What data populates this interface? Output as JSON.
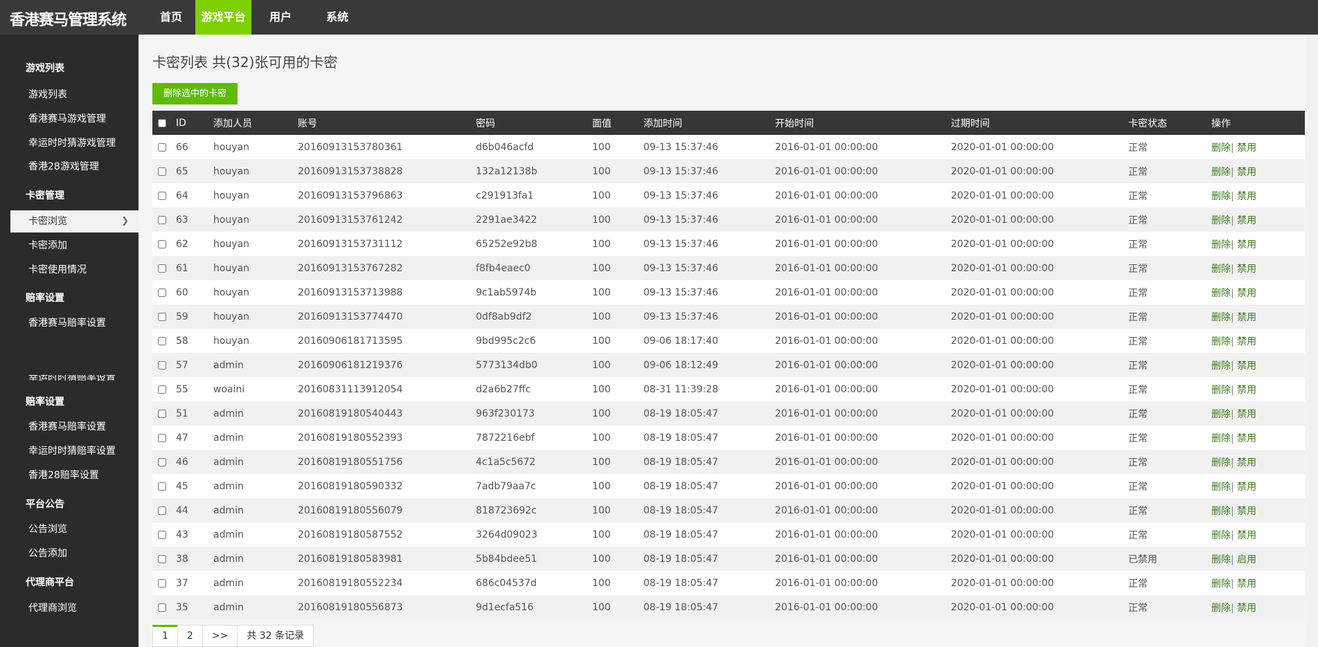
{
  "app": {
    "title": "香港赛马管理系统"
  },
  "nav": [
    {
      "label": "首页"
    },
    {
      "label": "游戏平台",
      "active": true
    },
    {
      "label": "用户"
    },
    {
      "label": "系统"
    }
  ],
  "sidebar": {
    "sections": [
      {
        "title": "游戏列表",
        "items": [
          "游戏列表",
          "香港赛马游戏管理",
          "幸运时时猜游戏管理",
          "香港28游戏管理"
        ]
      },
      {
        "title": "卡密管理",
        "items": [
          "卡密浏览",
          "卡密添加",
          "卡密使用情况"
        ]
      },
      {
        "title": "赔率设置",
        "items": [
          "香港赛马赔率设置",
          "幸运时时猜赔率设置"
        ]
      },
      {
        "title": "赔率设置",
        "items": [
          "香港赛马赔率设置",
          "幸运时时猜赔率设置",
          "香港28赔率设置"
        ]
      },
      {
        "title": "平台公告",
        "items": [
          "公告浏览",
          "公告添加"
        ]
      },
      {
        "title": "代理商平台",
        "items": [
          "代理商浏览"
        ]
      }
    ],
    "active_item": "卡密浏览"
  },
  "page": {
    "title": "卡密列表 共(32)张可用的卡密",
    "delete_selected": "删除选中的卡密"
  },
  "table": {
    "columns": [
      "ID",
      "添加人员",
      "账号",
      "密码",
      "面值",
      "添加时间",
      "开始时间",
      "过期时间",
      "卡密状态",
      "操作"
    ],
    "action_delete": "删除",
    "rows": [
      [
        "66",
        "houyan",
        "20160913153780361",
        "d6b046acfd",
        "100",
        "09-13 15:37:46",
        "2016-01-01 00:00:00",
        "2020-01-01 00:00:00",
        "正常",
        "禁用"
      ],
      [
        "65",
        "houyan",
        "20160913153738828",
        "132a12138b",
        "100",
        "09-13 15:37:46",
        "2016-01-01 00:00:00",
        "2020-01-01 00:00:00",
        "正常",
        "禁用"
      ],
      [
        "64",
        "houyan",
        "20160913153796863",
        "c291913fa1",
        "100",
        "09-13 15:37:46",
        "2016-01-01 00:00:00",
        "2020-01-01 00:00:00",
        "正常",
        "禁用"
      ],
      [
        "63",
        "houyan",
        "20160913153761242",
        "2291ae3422",
        "100",
        "09-13 15:37:46",
        "2016-01-01 00:00:00",
        "2020-01-01 00:00:00",
        "正常",
        "禁用"
      ],
      [
        "62",
        "houyan",
        "20160913153731112",
        "65252e92b8",
        "100",
        "09-13 15:37:46",
        "2016-01-01 00:00:00",
        "2020-01-01 00:00:00",
        "正常",
        "禁用"
      ],
      [
        "61",
        "houyan",
        "20160913153767282",
        "f8fb4eaec0",
        "100",
        "09-13 15:37:46",
        "2016-01-01 00:00:00",
        "2020-01-01 00:00:00",
        "正常",
        "禁用"
      ],
      [
        "60",
        "houyan",
        "20160913153713988",
        "9c1ab5974b",
        "100",
        "09-13 15:37:46",
        "2016-01-01 00:00:00",
        "2020-01-01 00:00:00",
        "正常",
        "禁用"
      ],
      [
        "59",
        "houyan",
        "20160913153774470",
        "0df8ab9df2",
        "100",
        "09-13 15:37:46",
        "2016-01-01 00:00:00",
        "2020-01-01 00:00:00",
        "正常",
        "禁用"
      ],
      [
        "58",
        "houyan",
        "20160906181713595",
        "9bd995c2c6",
        "100",
        "09-06 18:17:40",
        "2016-01-01 00:00:00",
        "2020-01-01 00:00:00",
        "正常",
        "禁用"
      ],
      [
        "57",
        "admin",
        "20160906181219376",
        "5773134db0",
        "100",
        "09-06 18:12:49",
        "2016-01-01 00:00:00",
        "2020-01-01 00:00:00",
        "正常",
        "禁用"
      ],
      [
        "55",
        "woaini",
        "20160831113912054",
        "d2a6b27ffc",
        "100",
        "08-31 11:39:28",
        "2016-01-01 00:00:00",
        "2020-01-01 00:00:00",
        "正常",
        "禁用"
      ],
      [
        "51",
        "admin",
        "20160819180540443",
        "963f230173",
        "100",
        "08-19 18:05:47",
        "2016-01-01 00:00:00",
        "2020-01-01 00:00:00",
        "正常",
        "禁用"
      ],
      [
        "47",
        "admin",
        "20160819180552393",
        "7872216ebf",
        "100",
        "08-19 18:05:47",
        "2016-01-01 00:00:00",
        "2020-01-01 00:00:00",
        "正常",
        "禁用"
      ],
      [
        "46",
        "admin",
        "20160819180551756",
        "4c1a5c5672",
        "100",
        "08-19 18:05:47",
        "2016-01-01 00:00:00",
        "2020-01-01 00:00:00",
        "正常",
        "禁用"
      ],
      [
        "45",
        "admin",
        "20160819180590332",
        "7adb79aa7c",
        "100",
        "08-19 18:05:47",
        "2016-01-01 00:00:00",
        "2020-01-01 00:00:00",
        "正常",
        "禁用"
      ],
      [
        "44",
        "admin",
        "20160819180556079",
        "818723692c",
        "100",
        "08-19 18:05:47",
        "2016-01-01 00:00:00",
        "2020-01-01 00:00:00",
        "正常",
        "禁用"
      ],
      [
        "43",
        "admin",
        "20160819180587552",
        "3264d09023",
        "100",
        "08-19 18:05:47",
        "2016-01-01 00:00:00",
        "2020-01-01 00:00:00",
        "正常",
        "禁用"
      ],
      [
        "38",
        "admin",
        "20160819180583981",
        "5b84bdee51",
        "100",
        "08-19 18:05:47",
        "2016-01-01 00:00:00",
        "2020-01-01 00:00:00",
        "已禁用",
        "启用"
      ],
      [
        "37",
        "admin",
        "20160819180552234",
        "686c04537d",
        "100",
        "08-19 18:05:47",
        "2016-01-01 00:00:00",
        "2020-01-01 00:00:00",
        "正常",
        "禁用"
      ],
      [
        "35",
        "admin",
        "20160819180556873",
        "9d1ecfa516",
        "100",
        "08-19 18:05:47",
        "2016-01-01 00:00:00",
        "2020-01-01 00:00:00",
        "正常",
        "禁用"
      ]
    ]
  },
  "pagination": {
    "pages": [
      "1",
      "2"
    ],
    "current": "1",
    "next": ">>",
    "total": "共 32 条记录"
  },
  "colors": {
    "accent": "#7fd000",
    "button": "#5fbb0a",
    "link": "#3d7d1c",
    "header": "#393939",
    "sidebar": "#2b2b2b"
  }
}
